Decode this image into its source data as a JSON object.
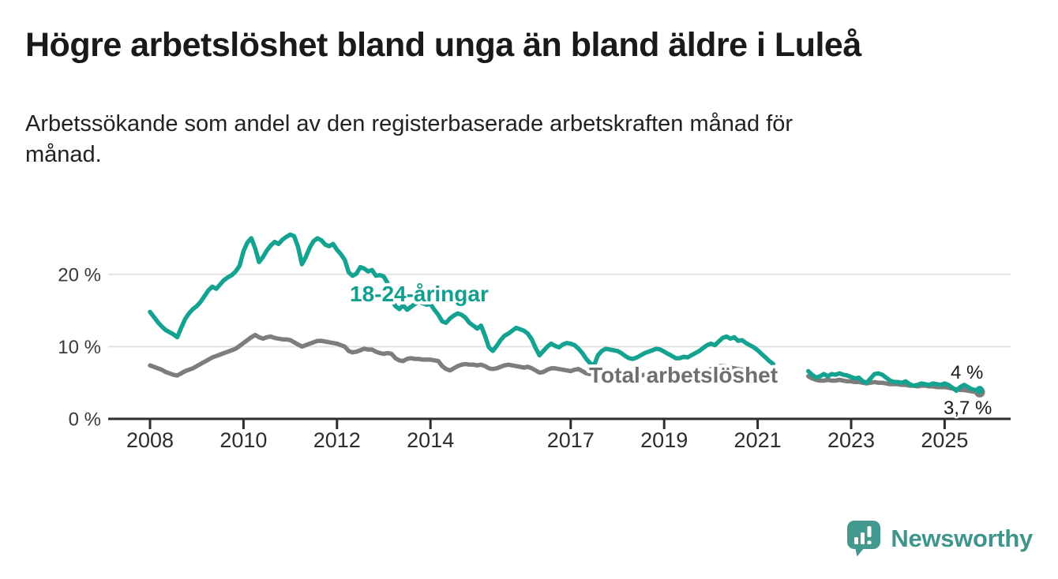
{
  "header": {
    "title": "Högre arbetslöshet bland unga än bland äldre i Luleå",
    "subtitle": "Arbetssökande som andel av den registerbaserade arbetskraften månad för månad.",
    "subtitle_lines": [
      "Arbetssökande som andel av den registerbaserade arbetskraften månad för",
      "månad."
    ]
  },
  "footer": {
    "logo_text": "Newsworthy",
    "logo_color": "#3f948c",
    "logo_icon": "newsworthy-speech-bubble-barchart-icon",
    "logo_icon_color": "#44998f"
  },
  "chart_data": {
    "type": "line",
    "title": "Högre arbetslöshet bland unga än bland äldre i Luleå",
    "subtitle": "Arbetssökande som andel av den registerbaserade arbetskraften månad för månad.",
    "x_axis": {
      "start_year": 2008,
      "frequency": "monthly",
      "tick_years": [
        2008,
        2010,
        2012,
        2014,
        2017,
        2019,
        2021,
        2023,
        2025
      ],
      "tick_labels": [
        "2008",
        "2010",
        "2012",
        "2014",
        "2017",
        "2019",
        "2021",
        "2023",
        "2025"
      ]
    },
    "y_axis": {
      "unit": "%",
      "ylim": [
        0,
        27
      ],
      "grid": true,
      "ticks": [
        {
          "value": 0,
          "label": "0 %"
        },
        {
          "value": 10,
          "label": "10 %"
        },
        {
          "value": 20,
          "label": "20 %"
        }
      ]
    },
    "colors": {
      "young_line": "#14a291",
      "young_label": "#11a08f",
      "total_line": "#7d7d7d",
      "total_label": "#6f6f6f",
      "axis": "#2d2d2d",
      "gridline": "#e3e3e3",
      "end_label_text": "#1a1a1a"
    },
    "series": [
      {
        "id": "total",
        "name": "Total arbetslöshet",
        "color": "#7d7d7d",
        "end_value_label": "3,7 %",
        "values": [
          7.4,
          7.2,
          7.0,
          6.8,
          6.5,
          6.3,
          6.1,
          6.0,
          6.3,
          6.6,
          6.8,
          7.0,
          7.3,
          7.6,
          7.9,
          8.2,
          8.5,
          8.7,
          8.9,
          9.1,
          9.3,
          9.5,
          9.7,
          10.1,
          10.5,
          10.9,
          11.3,
          11.6,
          11.3,
          11.1,
          11.3,
          11.4,
          11.2,
          11.1,
          11.0,
          11.0,
          10.9,
          10.6,
          10.3,
          10.0,
          10.2,
          10.4,
          10.6,
          10.8,
          10.8,
          10.7,
          10.6,
          10.5,
          10.4,
          10.2,
          10.0,
          9.4,
          9.2,
          9.3,
          9.5,
          9.7,
          9.6,
          9.6,
          9.3,
          9.1,
          9.0,
          9.1,
          9.0,
          8.4,
          8.1,
          8.0,
          8.3,
          8.4,
          8.3,
          8.3,
          8.2,
          8.2,
          8.2,
          8.1,
          8.0,
          7.3,
          6.9,
          6.7,
          7.0,
          7.3,
          7.5,
          7.6,
          7.5,
          7.5,
          7.4,
          7.5,
          7.3,
          7.0,
          6.9,
          7.0,
          7.2,
          7.4,
          7.5,
          7.4,
          7.3,
          7.2,
          7.1,
          7.2,
          7.0,
          6.7,
          6.4,
          6.5,
          6.8,
          7.0,
          7.0,
          6.9,
          6.8,
          6.7,
          6.6,
          6.8,
          6.9,
          6.6,
          6.3,
          6.2,
          6.4,
          6.5,
          6.4,
          6.3,
          6.2,
          6.1,
          6.0,
          6.0,
          5.9,
          5.8,
          5.8,
          5.9,
          6.0,
          6.1,
          6.1,
          6.2,
          6.2,
          6.2,
          6.2,
          6.1,
          6.0,
          5.9,
          5.9,
          6.0,
          6.0,
          6.1,
          6.2,
          6.3,
          6.4,
          6.6,
          6.9,
          7.0,
          7.3,
          7.3,
          7.2,
          7.1,
          7.0,
          6.9,
          6.8,
          6.7,
          6.6,
          6.5,
          6.4,
          6.3,
          6.2,
          6.1,
          6.0,
          null,
          null,
          null,
          null,
          null,
          null,
          null,
          null,
          5.9,
          5.6,
          5.4,
          5.3,
          5.3,
          5.4,
          5.3,
          5.3,
          5.4,
          5.3,
          5.2,
          5.2,
          5.1,
          5.1,
          5.0,
          4.9,
          5.0,
          5.1,
          5.0,
          5.0,
          4.9,
          4.8,
          4.8,
          4.8,
          4.7,
          4.7,
          4.6,
          4.6,
          4.5,
          4.6,
          4.6,
          4.5,
          4.5,
          4.4,
          4.4,
          4.4,
          4.3,
          4.2,
          4.1,
          4.0,
          4.0,
          3.9,
          3.8,
          3.7,
          3.7
        ]
      },
      {
        "id": "young",
        "name": "18-24-åringar",
        "color": "#14a291",
        "end_value_label": "4 %",
        "values": [
          14.8,
          14.1,
          13.4,
          12.8,
          12.3,
          12.0,
          11.7,
          11.3,
          12.6,
          13.8,
          14.6,
          15.2,
          15.6,
          16.2,
          17.0,
          17.8,
          18.3,
          18.0,
          18.6,
          19.2,
          19.6,
          19.9,
          20.4,
          21.2,
          23.2,
          24.4,
          25.0,
          23.6,
          21.7,
          22.4,
          23.3,
          24.0,
          24.5,
          24.2,
          24.8,
          25.2,
          25.5,
          25.3,
          23.8,
          21.4,
          22.4,
          23.7,
          24.6,
          25.0,
          24.7,
          24.1,
          23.9,
          24.2,
          23.4,
          22.8,
          22.0,
          20.3,
          19.8,
          20.1,
          21.0,
          20.8,
          20.4,
          20.6,
          19.8,
          19.9,
          19.7,
          18.8,
          16.6,
          15.6,
          15.2,
          15.7,
          15.1,
          15.5,
          15.9,
          16.2,
          16.0,
          15.8,
          15.9,
          15.1,
          14.4,
          13.5,
          13.3,
          13.9,
          14.3,
          14.6,
          14.4,
          14.0,
          13.3,
          12.9,
          12.5,
          12.9,
          11.5,
          9.9,
          9.4,
          10.1,
          10.9,
          11.5,
          11.8,
          12.2,
          12.6,
          12.4,
          12.2,
          11.8,
          11.0,
          9.8,
          8.8,
          9.4,
          10.0,
          10.4,
          10.1,
          9.9,
          10.3,
          10.5,
          10.4,
          10.2,
          9.7,
          9.1,
          8.3,
          7.7,
          7.4,
          8.8,
          9.4,
          9.7,
          9.6,
          9.5,
          9.4,
          9.1,
          8.7,
          8.4,
          8.3,
          8.5,
          8.8,
          9.1,
          9.3,
          9.5,
          9.7,
          9.6,
          9.3,
          9.0,
          8.7,
          8.4,
          8.4,
          8.6,
          8.5,
          8.8,
          9.1,
          9.4,
          9.8,
          10.2,
          10.4,
          10.2,
          10.7,
          11.2,
          11.4,
          11.1,
          11.3,
          10.8,
          10.9,
          10.5,
          10.2,
          9.9,
          9.5,
          9.0,
          8.5,
          8.0,
          7.6,
          null,
          null,
          null,
          null,
          null,
          null,
          null,
          null,
          6.6,
          6.1,
          5.7,
          5.9,
          6.2,
          5.9,
          6.2,
          6.1,
          6.3,
          6.1,
          6.0,
          5.8,
          5.6,
          5.7,
          5.2,
          5.0,
          5.6,
          6.2,
          6.3,
          6.1,
          5.7,
          5.3,
          5.1,
          5.1,
          5.0,
          5.2,
          4.8,
          4.6,
          4.7,
          4.9,
          4.8,
          4.7,
          4.9,
          4.8,
          4.7,
          4.9,
          4.7,
          4.3,
          3.9,
          4.4,
          4.7,
          4.4,
          4.1,
          4.0,
          4.0
        ]
      }
    ],
    "annotations": [
      {
        "id": "young_label",
        "text": "18-24-åringar",
        "color": "#11a08f"
      },
      {
        "id": "total_label",
        "text": "Total arbetslöshet",
        "color": "#6f6f6f"
      },
      {
        "id": "young_end",
        "text": "4 %",
        "color": "#1a1a1a"
      },
      {
        "id": "total_end",
        "text": "3,7 %",
        "color": "#1a1a1a"
      }
    ],
    "legend_position": "inline-labels"
  }
}
